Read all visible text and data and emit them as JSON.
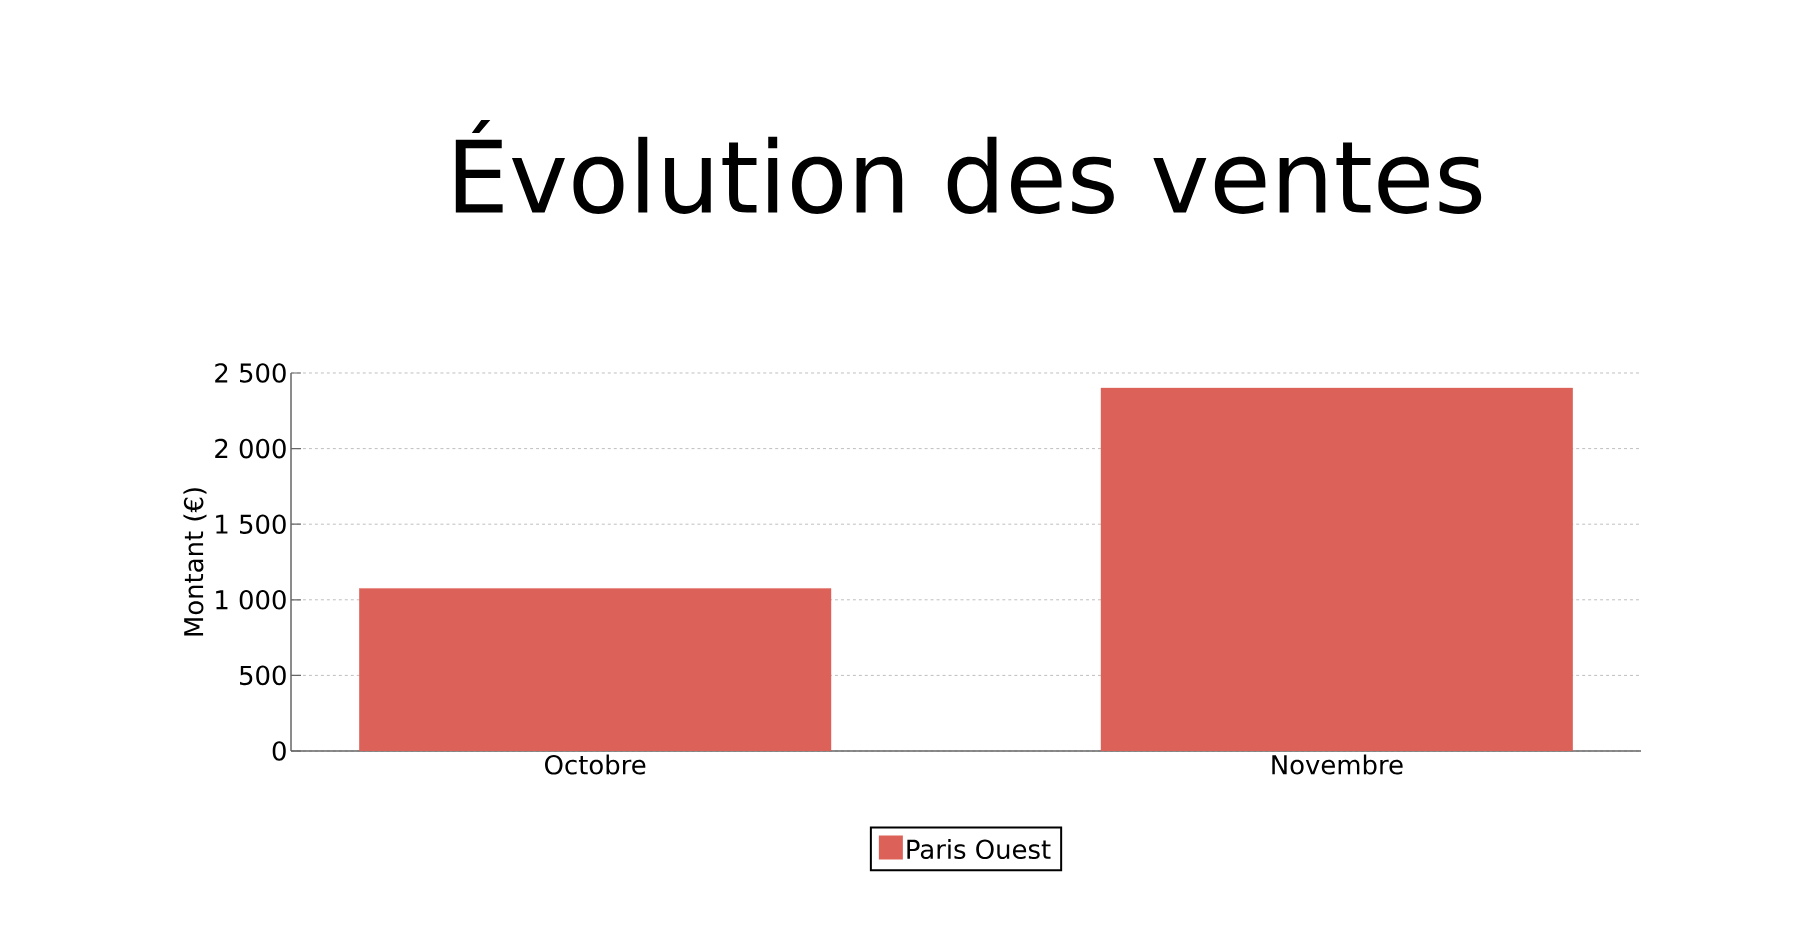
{
  "chart_data": {
    "type": "bar",
    "title": "Évolution des ventes",
    "ylabel": "Montant (€)",
    "categories": [
      "Octobre",
      "Novembre"
    ],
    "series": [
      {
        "name": "Paris Ouest",
        "color": "#dc6259",
        "values": [
          1075,
          2400
        ]
      }
    ],
    "ylim": [
      0,
      2500
    ],
    "yticks": [
      0,
      500,
      {
        "value": 1000,
        "label": "1 000"
      },
      {
        "value": 1500,
        "label": "1 500"
      },
      {
        "value": 2000,
        "label": "2 000"
      },
      {
        "value": 2500,
        "label": "2 500"
      }
    ],
    "grid": "y",
    "legend": "bottom"
  }
}
